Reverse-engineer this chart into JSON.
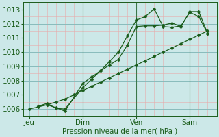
{
  "background_color": "#cce8e8",
  "minor_grid_color": "#e8aaaa",
  "major_grid_color": "#88bbbb",
  "line_color": "#1a5c1a",
  "ylabel": "Pression niveau de la mer( hPa )",
  "ylim": [
    1005.5,
    1013.5
  ],
  "yticks": [
    1006,
    1007,
    1008,
    1009,
    1010,
    1011,
    1012,
    1013
  ],
  "xtick_labels": [
    "Jeu",
    "Dim",
    "Ven",
    "Sam"
  ],
  "xtick_positions": [
    0,
    36,
    72,
    108
  ],
  "xlim": [
    -4,
    126
  ],
  "vline_positions": [
    36,
    72,
    108
  ],
  "line1_x": [
    0,
    6,
    12,
    18,
    24,
    30,
    36,
    42,
    48,
    54,
    60,
    66,
    72,
    78,
    84,
    90,
    96,
    102,
    108,
    114,
    120
  ],
  "line1_y": [
    1006.0,
    1006.15,
    1006.3,
    1006.5,
    1006.7,
    1007.0,
    1007.3,
    1007.6,
    1007.9,
    1008.2,
    1008.5,
    1008.8,
    1009.1,
    1009.4,
    1009.7,
    1010.0,
    1010.3,
    1010.6,
    1010.9,
    1011.2,
    1011.5
  ],
  "line2_x": [
    6,
    12,
    18,
    24,
    36,
    42,
    48,
    54,
    60,
    66,
    72,
    78,
    84,
    90,
    96,
    102,
    108,
    114,
    120
  ],
  "line2_y": [
    1006.2,
    1006.4,
    1006.05,
    1006.0,
    1007.5,
    1008.1,
    1008.7,
    1009.35,
    1010.0,
    1011.15,
    1012.25,
    1012.5,
    1013.05,
    1011.8,
    1011.75,
    1011.85,
    1012.8,
    1012.5,
    1011.3
  ],
  "line3_x": [
    6,
    12,
    18,
    24,
    36,
    42,
    48,
    54,
    60,
    66,
    72,
    78,
    84,
    90,
    96,
    102,
    108,
    114,
    120
  ],
  "line3_y": [
    1006.2,
    1006.3,
    1006.1,
    1005.85,
    1007.8,
    1008.25,
    1008.7,
    1009.1,
    1009.5,
    1010.5,
    1011.8,
    1011.85,
    1011.85,
    1011.9,
    1012.05,
    1011.8,
    1012.85,
    1012.85,
    1011.3
  ],
  "font_size": 7.5,
  "marker_size": 2.5,
  "line_width": 0.9
}
